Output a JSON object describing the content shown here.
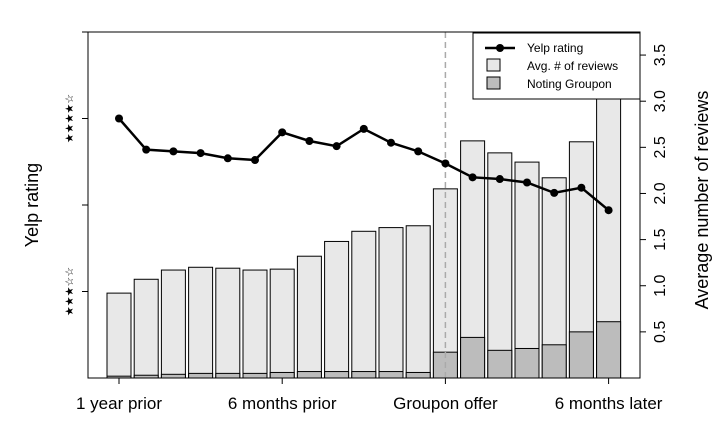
{
  "chart_data": {
    "type": "bar",
    "x_tick_labels": [
      "1 year prior",
      "6 months prior",
      "Groupon offer",
      "6 months later"
    ],
    "x_tick_positions": [
      1,
      7,
      13,
      19
    ],
    "ylabel_left": "Yelp rating",
    "left_tick_labels": [
      "★★★☆☆",
      "★★★★☆"
    ],
    "ylabel_right": "Average number of reviews",
    "right_axis_ticks": [
      0.5,
      1.0,
      1.5,
      2.0,
      2.5,
      3.0,
      3.5
    ],
    "right_ylim": [
      0,
      3.75
    ],
    "left_ylim": [
      2.5,
      4.5
    ],
    "groupon_offer_x": 13,
    "series": [
      {
        "name": "Yelp rating",
        "kind": "line",
        "x": [
          1,
          2,
          3,
          4,
          5,
          6,
          7,
          8,
          9,
          10,
          11,
          12,
          13,
          14,
          15,
          16,
          17,
          18,
          19
        ],
        "values": [
          4.0,
          3.82,
          3.81,
          3.8,
          3.77,
          3.76,
          3.92,
          3.87,
          3.84,
          3.94,
          3.86,
          3.81,
          3.74,
          3.66,
          3.65,
          3.63,
          3.57,
          3.6,
          3.47
        ]
      },
      {
        "name": "Avg. # of reviews",
        "kind": "bar",
        "x": [
          1,
          2,
          3,
          4,
          5,
          6,
          7,
          8,
          9,
          10,
          11,
          12,
          13,
          14,
          15,
          16,
          17,
          18,
          19
        ],
        "values": [
          0.92,
          1.07,
          1.17,
          1.2,
          1.19,
          1.17,
          1.18,
          1.32,
          1.48,
          1.59,
          1.63,
          1.65,
          2.05,
          2.57,
          2.44,
          2.34,
          2.17,
          2.56,
          3.06
        ]
      },
      {
        "name": "Noting Groupon",
        "kind": "bar",
        "x": [
          1,
          2,
          3,
          4,
          5,
          6,
          7,
          8,
          9,
          10,
          11,
          12,
          13,
          14,
          15,
          16,
          17,
          18,
          19
        ],
        "values": [
          0.02,
          0.03,
          0.04,
          0.05,
          0.05,
          0.05,
          0.06,
          0.07,
          0.07,
          0.07,
          0.07,
          0.06,
          0.28,
          0.44,
          0.3,
          0.32,
          0.36,
          0.5,
          0.61
        ]
      }
    ],
    "legend_position": "top-right",
    "grid": false,
    "colors": {
      "line": "#000000",
      "bar_total": "#e8e8e8",
      "bar_groupon": "#bcbcbc",
      "bar_stroke": "#000000",
      "vline": "#aaaaaa"
    }
  }
}
